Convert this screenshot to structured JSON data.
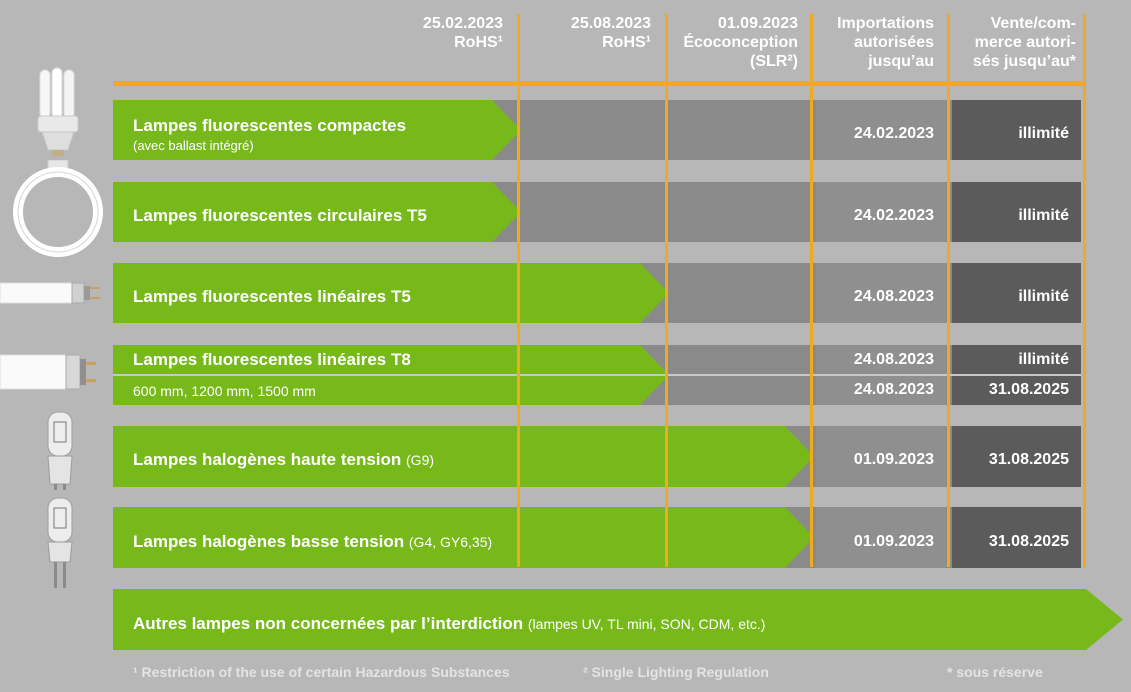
{
  "headers": {
    "rohs_2023_02": "25.02.2023\nRoHS¹",
    "rohs_2023_08": "25.08.2023\nRoHS¹",
    "ecodesign": "01.09.2023\nÉcoconception\n(SLR²)",
    "imports": "Importations\nautorisées\njusqu’au",
    "sales": "Vente/com-\nmerce autori-\nsés jusqu’au*"
  },
  "rows": [
    {
      "label": "Lampes fluorescentes compactes",
      "sub": "(avec ballast intégré)",
      "imports": "24.02.2023",
      "sales": "illimité"
    },
    {
      "label": "Lampes fluorescentes circulaires T5",
      "sub": "",
      "imports": "24.02.2023",
      "sales": "illimité"
    },
    {
      "label": "Lampes fluorescentes linéaires T5",
      "sub": "",
      "imports": "24.08.2023",
      "sales": "illimité"
    },
    {
      "label": "Lampes fluorescentes linéaires T8",
      "sub": "",
      "imports": "24.08.2023",
      "sales": "illimité"
    },
    {
      "label": "",
      "sub": "600 mm, 1200 mm, 1500 mm",
      "imports": "24.08.2023",
      "sales": "31.08.2025"
    },
    {
      "label": "Lampes halogènes haute tension",
      "sub": "(G9)",
      "imports": "01.09.2023",
      "sales": "31.08.2025"
    },
    {
      "label": "Lampes halogènes basse tension",
      "sub": "(G4, GY6,35)",
      "imports": "01.09.2023",
      "sales": "31.08.2025"
    }
  ],
  "other": {
    "label": "Autres lampes non concernées par l’interdiction",
    "sub": "(lampes UV, TL mini, SON, CDM, etc.)"
  },
  "footnotes": {
    "rohs": "¹ Restriction of the use of certain Hazardous Substances",
    "slr": "² Single Lighting Regulation",
    "reserve": "* sous réserve"
  },
  "colors": {
    "arrow_green": "#77b81b",
    "timeline_orange": "#f0aa1e",
    "gray_band": "#8a8a8a",
    "sales_column": "#5b5b5b"
  }
}
